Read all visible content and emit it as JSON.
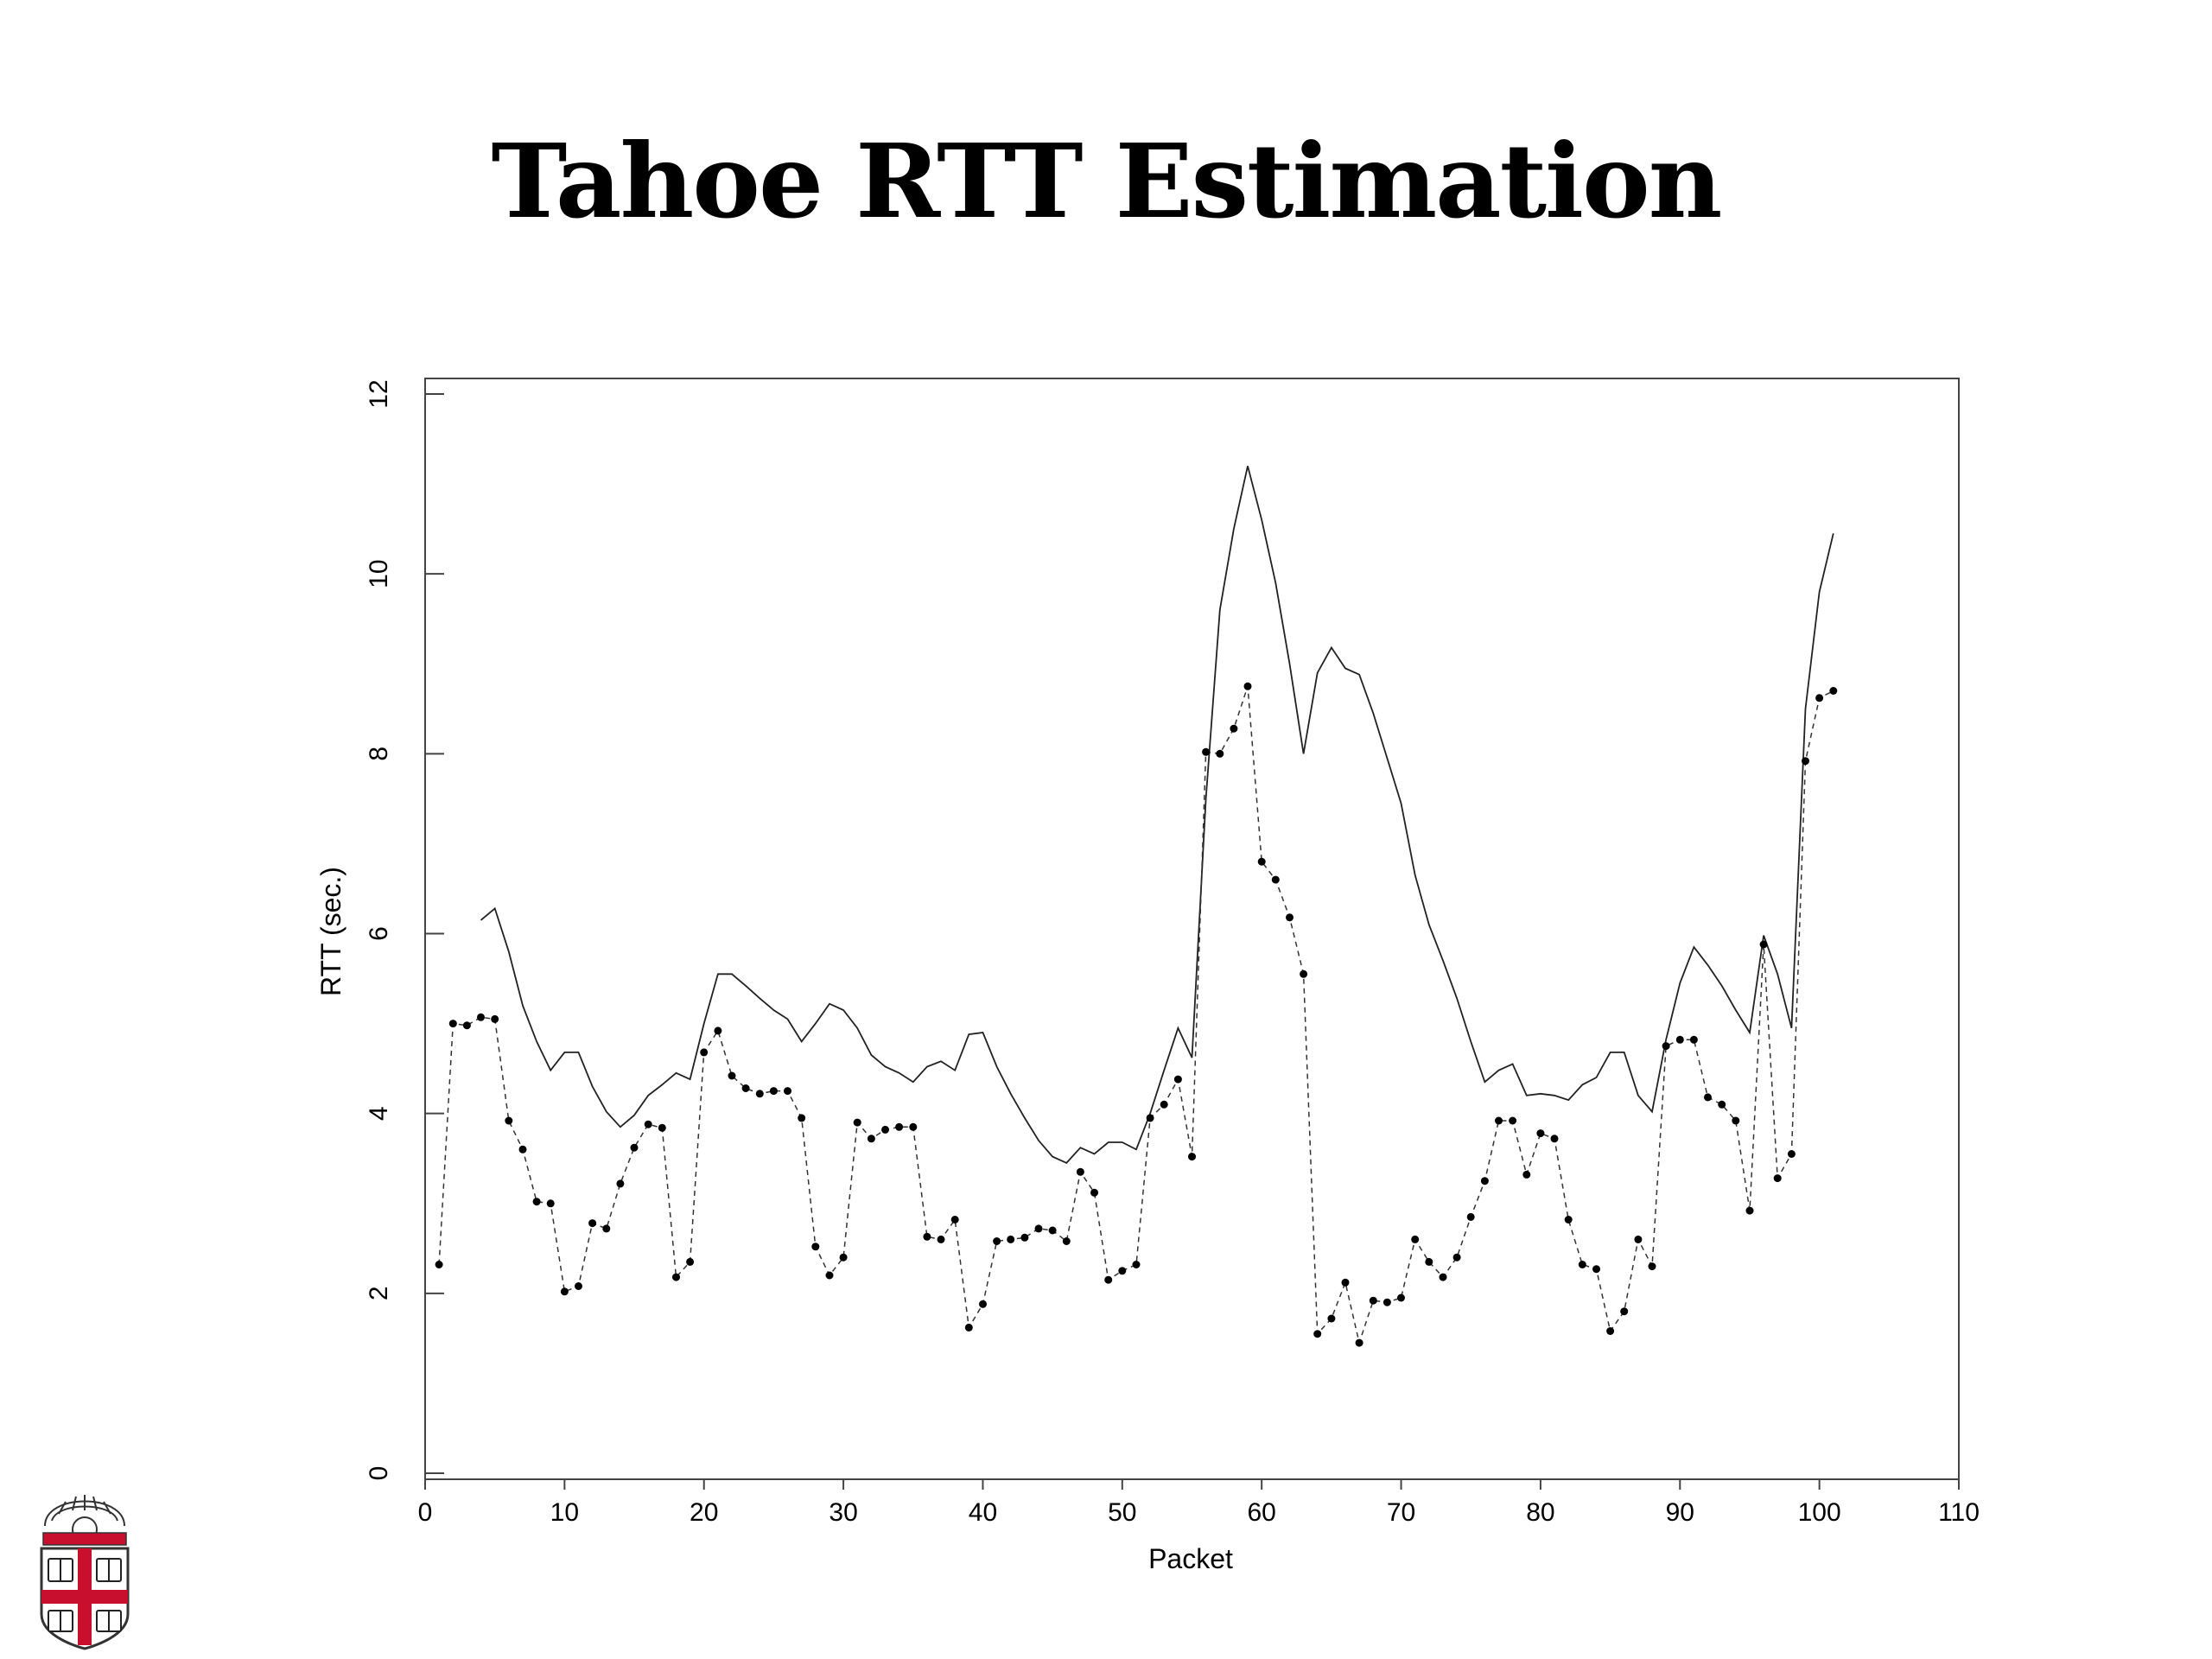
{
  "slide": {
    "title": "Tahoe RTT Estimation"
  },
  "logo": {
    "name": "brown-university-shield"
  },
  "chart_data": {
    "type": "line",
    "xlabel": "Packet",
    "ylabel": "RTT (sec.)",
    "xlim": [
      0,
      110
    ],
    "ylim": [
      0,
      12
    ],
    "x_ticks": [
      0,
      10,
      20,
      30,
      40,
      50,
      60,
      70,
      80,
      90,
      100,
      110
    ],
    "y_ticks": [
      0,
      2,
      4,
      6,
      8,
      10,
      12
    ],
    "grid": false,
    "legend": false,
    "series": [
      {
        "style": "solid",
        "x": [
          4,
          5,
          6,
          7,
          8,
          9,
          10,
          11,
          12,
          13,
          14,
          15,
          16,
          17,
          18,
          19,
          20,
          21,
          22,
          23,
          24,
          25,
          26,
          27,
          28,
          29,
          30,
          31,
          32,
          33,
          34,
          35,
          36,
          37,
          38,
          39,
          40,
          41,
          42,
          43,
          44,
          45,
          46,
          47,
          48,
          49,
          50,
          51,
          52,
          53,
          54,
          55,
          56,
          57,
          58,
          59,
          60,
          61,
          62,
          63,
          64,
          65,
          66,
          67,
          68,
          69,
          70,
          71,
          72,
          73,
          74,
          75,
          76,
          77,
          78,
          79,
          80,
          81,
          82,
          83,
          84,
          85,
          86,
          87,
          88,
          89,
          90,
          91,
          92,
          93,
          94,
          95,
          96,
          97,
          98,
          99,
          100,
          101
        ],
        "y": [
          6.15,
          6.28,
          5.8,
          5.2,
          4.8,
          4.48,
          4.68,
          4.68,
          4.3,
          4.02,
          3.85,
          3.98,
          4.2,
          4.32,
          4.45,
          4.38,
          5.0,
          5.55,
          5.55,
          5.42,
          5.28,
          5.15,
          5.05,
          4.8,
          5.0,
          5.22,
          5.15,
          4.95,
          4.65,
          4.52,
          4.45,
          4.35,
          4.52,
          4.58,
          4.48,
          4.88,
          4.9,
          4.52,
          4.22,
          3.95,
          3.7,
          3.52,
          3.45,
          3.62,
          3.55,
          3.68,
          3.68,
          3.6,
          4.0,
          4.48,
          4.95,
          4.62,
          7.5,
          9.6,
          10.5,
          11.2,
          10.6,
          9.9,
          9.0,
          8.0,
          8.9,
          9.18,
          8.95,
          8.88,
          8.45,
          7.95,
          7.45,
          6.65,
          6.1,
          5.7,
          5.28,
          4.8,
          4.35,
          4.48,
          4.55,
          4.2,
          4.22,
          4.2,
          4.15,
          4.32,
          4.4,
          4.68,
          4.68,
          4.2,
          4.02,
          4.82,
          5.45,
          5.85,
          5.65,
          5.42,
          5.15,
          4.9,
          5.98,
          5.55,
          4.95,
          8.5,
          9.8,
          10.45
        ]
      },
      {
        "style": "dotted-with-points",
        "x": [
          1,
          2,
          3,
          4,
          5,
          6,
          7,
          8,
          9,
          10,
          11,
          12,
          13,
          14,
          15,
          16,
          17,
          18,
          19,
          20,
          21,
          22,
          23,
          24,
          25,
          26,
          27,
          28,
          29,
          30,
          31,
          32,
          33,
          34,
          35,
          36,
          37,
          38,
          39,
          40,
          41,
          42,
          43,
          44,
          45,
          46,
          47,
          48,
          49,
          50,
          51,
          52,
          53,
          54,
          55,
          56,
          57,
          58,
          59,
          60,
          61,
          62,
          63,
          64,
          65,
          66,
          67,
          68,
          69,
          70,
          71,
          72,
          73,
          74,
          75,
          76,
          77,
          78,
          79,
          80,
          81,
          82,
          83,
          84,
          85,
          86,
          87,
          88,
          89,
          90,
          91,
          92,
          93,
          94,
          95,
          96,
          97,
          98,
          99,
          100,
          101
        ],
        "y": [
          2.32,
          5.0,
          4.98,
          5.07,
          5.05,
          3.92,
          3.6,
          3.02,
          3.0,
          2.02,
          2.08,
          2.78,
          2.72,
          3.22,
          3.62,
          3.88,
          3.84,
          2.18,
          2.35,
          4.68,
          4.92,
          4.42,
          4.28,
          4.22,
          4.25,
          4.25,
          3.95,
          2.52,
          2.2,
          2.4,
          3.9,
          3.72,
          3.82,
          3.85,
          3.85,
          2.63,
          2.6,
          2.82,
          1.62,
          1.88,
          2.58,
          2.6,
          2.62,
          2.72,
          2.7,
          2.58,
          3.35,
          3.12,
          2.15,
          2.25,
          2.32,
          3.95,
          4.1,
          4.38,
          3.52,
          8.02,
          8.0,
          8.28,
          8.75,
          6.8,
          6.6,
          6.18,
          5.55,
          1.55,
          1.72,
          2.12,
          1.45,
          1.92,
          1.9,
          1.95,
          2.6,
          2.35,
          2.18,
          2.4,
          2.85,
          3.25,
          3.92,
          3.92,
          3.32,
          3.78,
          3.72,
          2.82,
          2.32,
          2.27,
          1.58,
          1.8,
          2.6,
          2.3,
          4.75,
          4.82,
          4.82,
          4.18,
          4.1,
          3.92,
          2.92,
          5.88,
          3.28,
          3.55,
          7.92,
          8.62,
          8.7
        ]
      }
    ]
  }
}
